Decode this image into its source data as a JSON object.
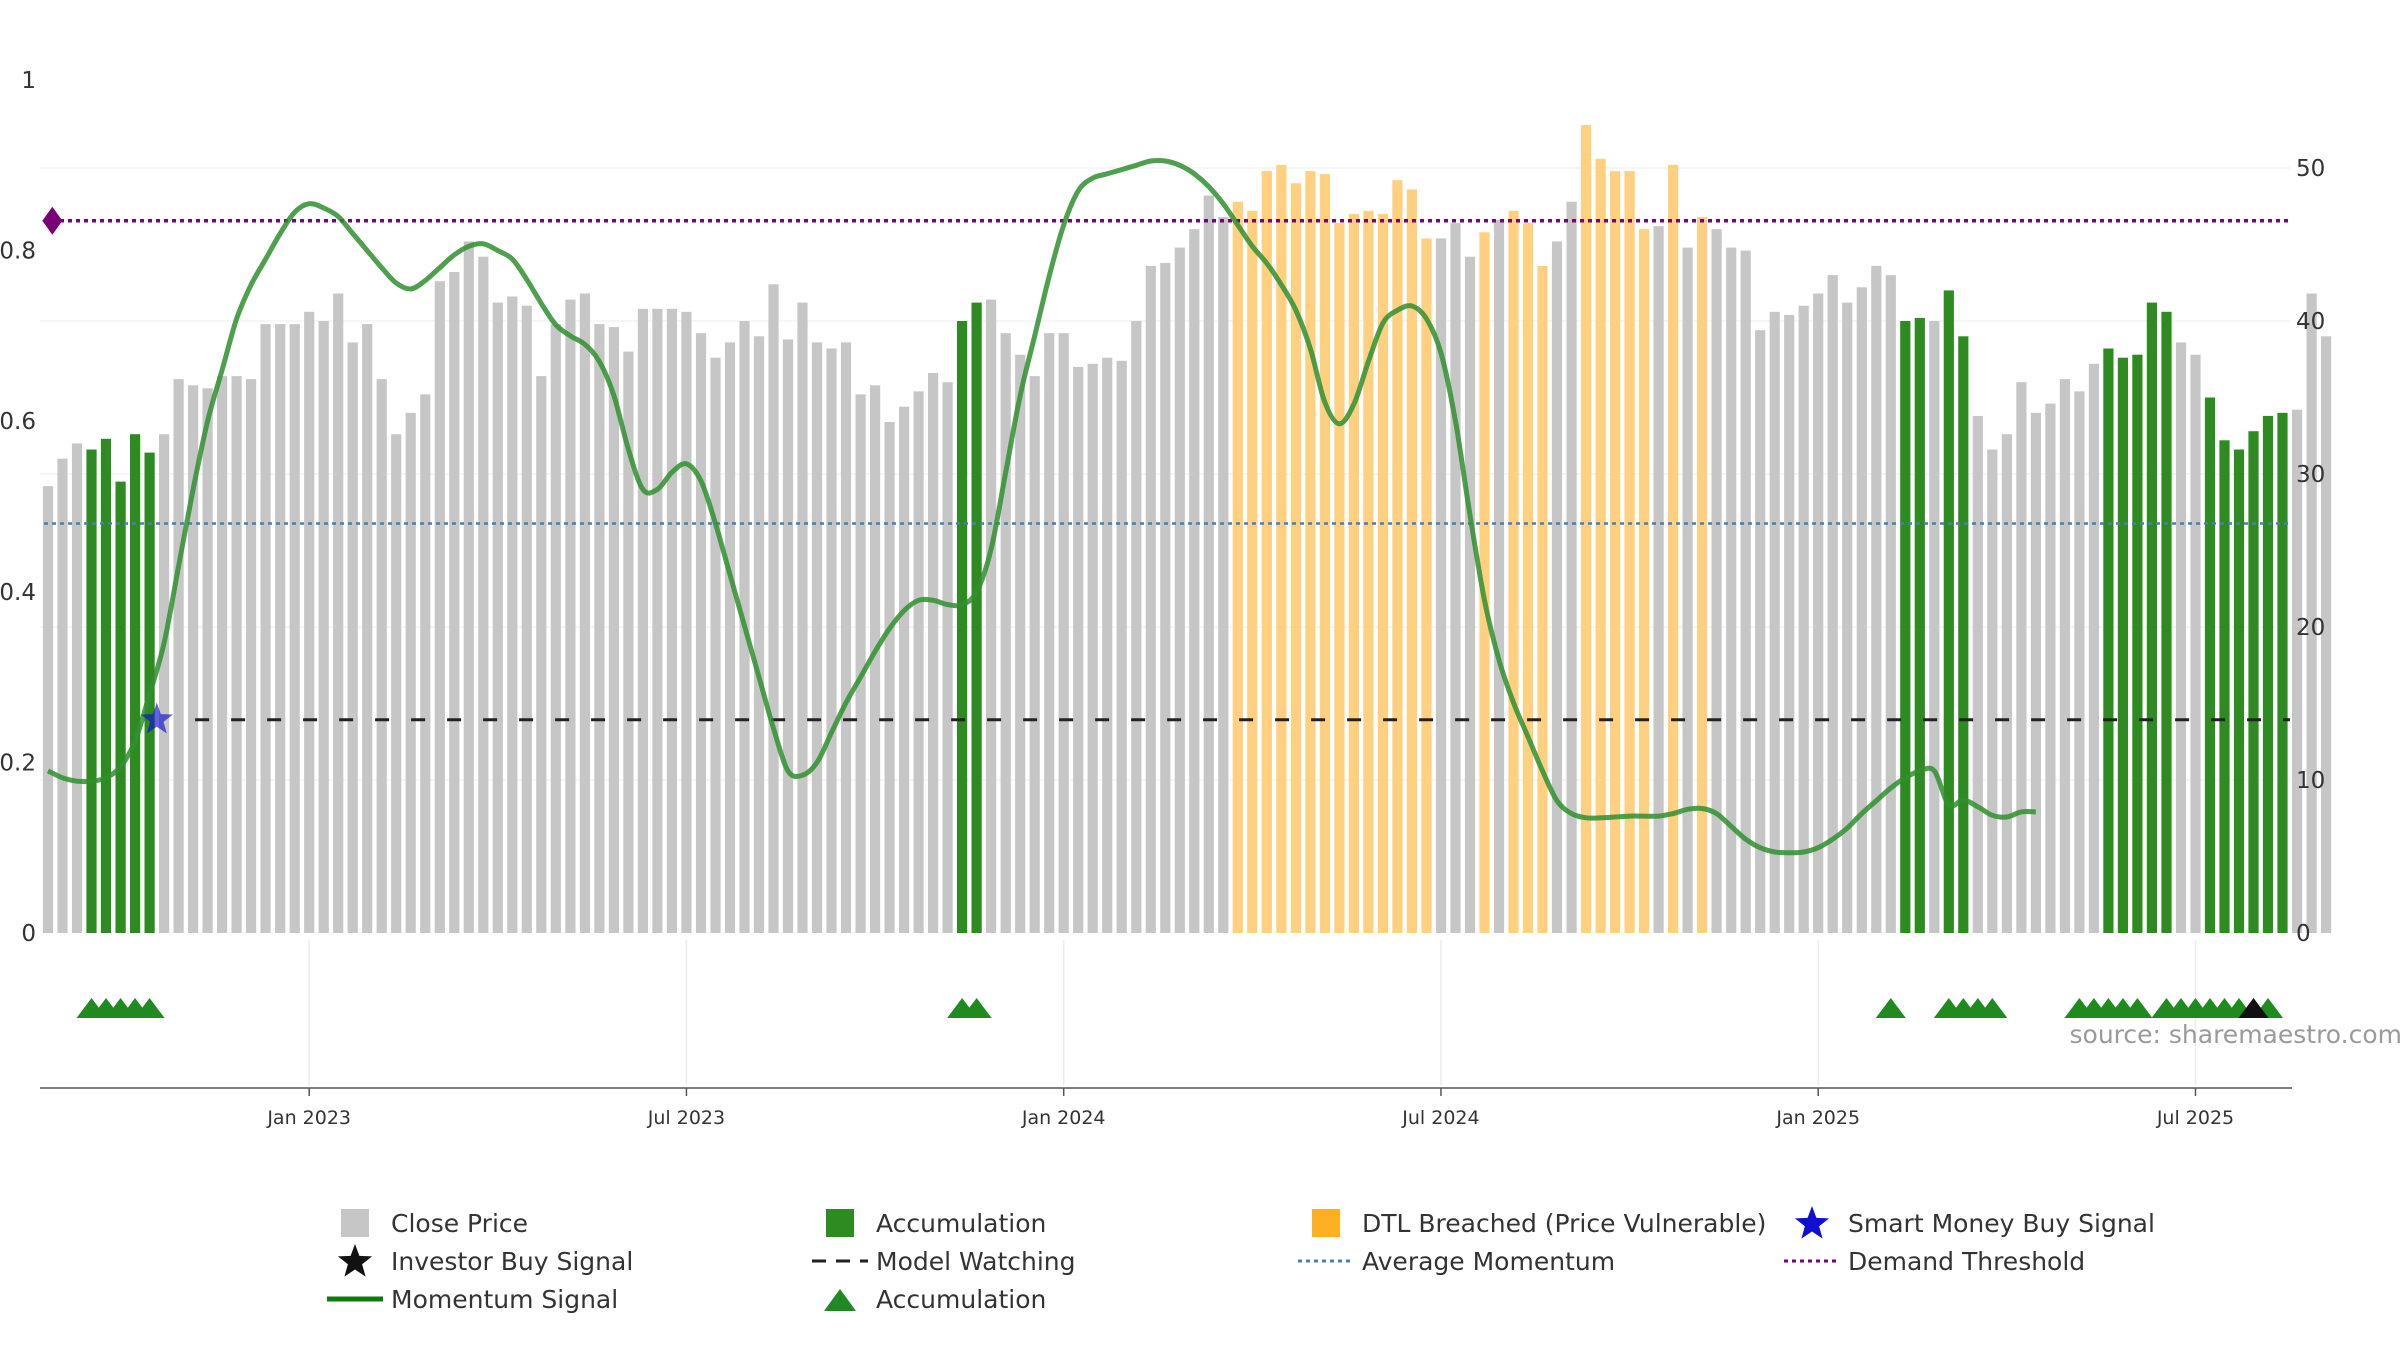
{
  "colors": {
    "close": "#c6c6c6",
    "accumulation": "#2e8b22",
    "dtl": "#ffd080",
    "momentum": "#2f8f2f",
    "momentum_strong": "#0f7a0f",
    "average": "#4a7fa8",
    "demand": "#7a007a",
    "watching": "#222222",
    "smart_money": "#1010d0",
    "investor": "#111111",
    "triangle": "#1f8a1f"
  },
  "chart_data": {
    "type": "bar",
    "x_ticks": [
      "Jan 2023",
      "Jul 2023",
      "Jan 2024",
      "Jul 2024",
      "Jan 2025",
      "Jul 2025"
    ],
    "x_tick_positions": [
      18,
      44,
      70,
      96,
      122,
      148
    ],
    "y_left_ticks": [
      "0",
      "0.2",
      "0.4",
      "0.6",
      "0.8",
      "1"
    ],
    "y_right_ticks": [
      "0",
      "10",
      "20",
      "30",
      "40",
      "50"
    ],
    "y_right_range": [
      0,
      50
    ],
    "bar_type_legend": {
      "C": "Close Price",
      "A": "Accumulation",
      "D": "DTL Breached (Price Vulnerable)"
    },
    "close_values": [
      29.2,
      31.0,
      32.0,
      31.6,
      32.3,
      29.5,
      32.6,
      31.4,
      32.6,
      36.2,
      35.8,
      35.6,
      36.4,
      36.4,
      36.2,
      39.8,
      39.8,
      39.8,
      40.6,
      40.0,
      41.8,
      38.6,
      39.8,
      36.2,
      32.6,
      34.0,
      35.2,
      42.6,
      43.2,
      45.2,
      44.2,
      41.2,
      41.6,
      41.0,
      36.4,
      39.8,
      41.4,
      41.8,
      39.8,
      39.6,
      38.0,
      40.8,
      40.8,
      40.8,
      40.6,
      39.2,
      37.6,
      38.6,
      40.0,
      39.0,
      42.4,
      38.8,
      41.2,
      38.6,
      38.2,
      38.6,
      35.2,
      35.8,
      33.4,
      34.4,
      35.4,
      36.6,
      36.0,
      40.0,
      41.2,
      41.4,
      39.2,
      37.8,
      36.4,
      39.2,
      39.2,
      37.0,
      37.2,
      37.6,
      37.4,
      40.0,
      43.6,
      43.8,
      44.8,
      46.0,
      48.2,
      46.8,
      47.8,
      47.2,
      49.8,
      50.2,
      49.0,
      49.8,
      49.6,
      46.4,
      47.0,
      47.2,
      47.0,
      49.2,
      48.6,
      45.4,
      45.4,
      46.4,
      44.2,
      45.8,
      46.6,
      47.2,
      46.4,
      43.6,
      45.2,
      47.8,
      52.8,
      50.6,
      49.8,
      49.8,
      46.0,
      46.2,
      50.2,
      44.8,
      46.8,
      46.0,
      44.8,
      44.6,
      39.4,
      40.6,
      40.4,
      41.0,
      41.8,
      43.0,
      41.2,
      42.2,
      43.6,
      43.0,
      40.0,
      40.2,
      40.0,
      42.0,
      39.0,
      33.8,
      31.6,
      32.6,
      36.0,
      34.0,
      34.6,
      36.2,
      35.4,
      37.2,
      38.2,
      37.6,
      37.8,
      41.2,
      40.6,
      38.6,
      37.8,
      35.0,
      32.2,
      31.6,
      32.8,
      33.8,
      34.0,
      34.2,
      41.8,
      39.0
    ],
    "bar_types": "CCCAAAAACCCCCCCCCCCCCCCCCCCCCCCCCCCCCCCCCCCCCCCCCCCCCCCCCCCCCCCAACCCCCCCCCCCCCCCCCDDDDDDDDDDDDDDCCCDCDDDCCDDDDDCDCDCCCCCCCCCCCCCAACAACCCCCCCCCAAAAACCAAAAAACCCCCCC",
    "momentum": [
      0.19,
      0.182,
      0.178,
      0.178,
      0.182,
      0.195,
      0.225,
      0.28,
      0.34,
      0.43,
      0.52,
      0.6,
      0.66,
      0.72,
      0.76,
      0.79,
      0.82,
      0.845,
      0.855,
      0.85,
      0.84,
      0.82,
      0.8,
      0.78,
      0.762,
      0.755,
      0.765,
      0.78,
      0.795,
      0.805,
      0.808,
      0.8,
      0.79,
      0.766,
      0.738,
      0.713,
      0.7,
      0.69,
      0.67,
      0.63,
      0.567,
      0.52,
      0.52,
      0.54,
      0.55,
      0.53,
      0.48,
      0.42,
      0.36,
      0.3,
      0.24,
      0.19,
      0.185,
      0.2,
      0.235,
      0.27,
      0.3,
      0.33,
      0.357,
      0.378,
      0.39,
      0.39,
      0.385,
      0.385,
      0.4,
      0.45,
      0.54,
      0.63,
      0.7,
      0.77,
      0.83,
      0.87,
      0.885,
      0.89,
      0.895,
      0.9,
      0.905,
      0.905,
      0.9,
      0.89,
      0.875,
      0.855,
      0.83,
      0.805,
      0.785,
      0.76,
      0.73,
      0.685,
      0.622,
      0.597,
      0.62,
      0.67,
      0.715,
      0.73,
      0.735,
      0.72,
      0.68,
      0.6,
      0.49,
      0.39,
      0.32,
      0.27,
      0.23,
      0.19,
      0.155,
      0.14,
      0.135,
      0.135,
      0.136,
      0.137,
      0.137,
      0.137,
      0.14,
      0.145,
      0.146,
      0.14,
      0.125,
      0.11,
      0.1,
      0.095,
      0.094,
      0.095,
      0.1,
      0.11,
      0.123,
      0.14,
      0.155,
      0.17,
      0.182,
      0.19,
      0.19,
      0.15,
      0.156,
      0.148,
      0.138,
      0.136,
      0.142,
      0.142
    ],
    "average_momentum": 0.48,
    "demand_threshold": 0.835,
    "model_watching_level": 0.25,
    "model_watching_start": 10,
    "smart_money_signals": [
      {
        "x": 7.5,
        "y": 0.25
      }
    ],
    "demand_marker": {
      "x": 0.3,
      "y": 0.835
    },
    "accumulation_triangles": [
      3,
      4,
      5,
      6,
      7,
      63,
      64,
      127,
      131,
      132,
      133,
      134,
      140,
      141,
      142,
      143,
      144,
      146,
      147,
      148,
      149,
      150,
      151,
      153
    ],
    "investor_signals": [
      152
    ]
  },
  "source": "source: sharemaestro.com",
  "legend": {
    "close": "Close Price",
    "accumulation_bar": "Accumulation",
    "dtl": "DTL Breached (Price Vulnerable)",
    "smart_money": "Smart Money Buy Signal",
    "investor": "Investor Buy Signal",
    "watching": "Model Watching",
    "average": "Average Momentum",
    "demand": "Demand Threshold",
    "momentum": "Momentum Signal",
    "accumulation_tri": "Accumulation"
  }
}
